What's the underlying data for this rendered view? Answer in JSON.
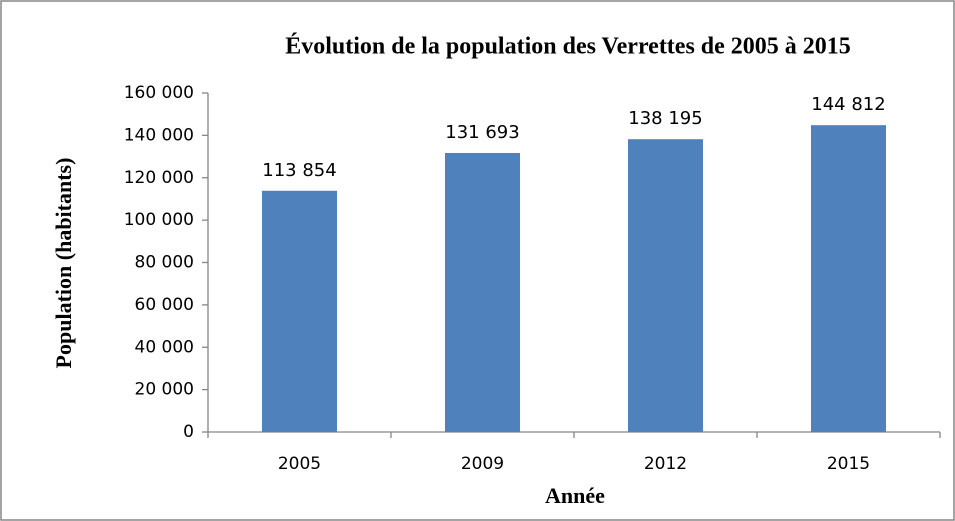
{
  "chart_data": {
    "type": "bar",
    "title": "Évolution de la population des Verrettes de 2005 à 2015",
    "x_label": "Année",
    "y_label": "Population (habitants)",
    "categories": [
      "2005",
      "2009",
      "2012",
      "2015"
    ],
    "values": [
      113854,
      131693,
      138195,
      144812
    ],
    "value_labels": [
      "113 854",
      "131 693",
      "138 195",
      "144 812"
    ],
    "color": "#4f81bd",
    "ylim": [
      0,
      160000
    ],
    "yticks": [
      0,
      {
        "value": 20000,
        "label": "20 000"
      },
      {
        "value": 40000,
        "label": "40 000"
      },
      {
        "value": 60000,
        "label": "60 000"
      },
      {
        "value": 80000,
        "label": "80 000"
      },
      {
        "value": 100000,
        "label": "100 000"
      },
      {
        "value": 120000,
        "label": "120 000"
      },
      {
        "value": 140000,
        "label": "140 000"
      },
      {
        "value": 160000,
        "label": "160 000"
      }
    ],
    "grid": false
  }
}
